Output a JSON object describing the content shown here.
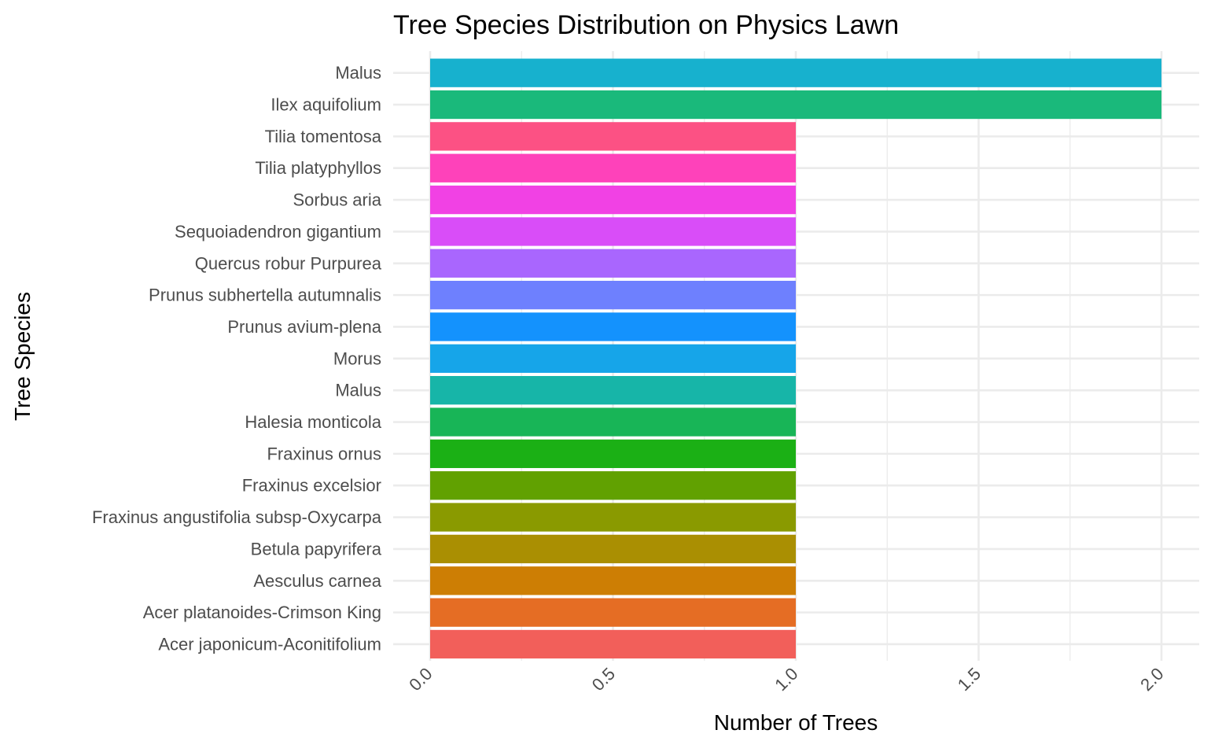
{
  "chart_data": {
    "type": "bar",
    "orientation": "horizontal",
    "title": "Tree Species Distribution on Physics Lawn",
    "xlabel": "Number of Trees",
    "ylabel": "Tree Species",
    "xlim": [
      0,
      2
    ],
    "x_ticks": [
      "0.0",
      "0.5",
      "1.0",
      "1.5",
      "2.0"
    ],
    "x_tick_values": [
      0,
      0.5,
      1.0,
      1.5,
      2.0
    ],
    "x_tick_rotation": "45 degrees",
    "grid": true,
    "legend": "none",
    "categories": [
      "Malus ",
      "Ilex aquifolium",
      "Tilia tomentosa",
      "Tilia platyphyllos",
      "Sorbus aria",
      "Sequoiadendron gigantium",
      "Quercus robur Purpurea",
      "Prunus subhertella autumnalis",
      "Prunus avium-plena",
      "Morus",
      "Malus",
      "Halesia monticola ",
      "Fraxinus ornus",
      "Fraxinus excelsior",
      "Fraxinus angustifolia subsp-Oxycarpa",
      "Betula papyrifera",
      "Aesculus carnea",
      "Acer platanoides-Crimson King",
      "Acer japonicum-Aconitifolium"
    ],
    "values": [
      2,
      2,
      1,
      1,
      1,
      1,
      1,
      1,
      1,
      1,
      1,
      1,
      1,
      1,
      1,
      1,
      1,
      1,
      1
    ],
    "colors": [
      "#17B1CE",
      "#1AB97B",
      "#FC5184",
      "#FE42BA",
      "#F141E4",
      "#D94DF8",
      "#A966FE",
      "#6E80FE",
      "#1492FD",
      "#16A5E9",
      "#17B5A8",
      "#18B557",
      "#1BB015",
      "#61A101",
      "#8A9A00",
      "#AA8F02",
      "#CD7E04",
      "#E56D24",
      "#F25F5A"
    ]
  }
}
